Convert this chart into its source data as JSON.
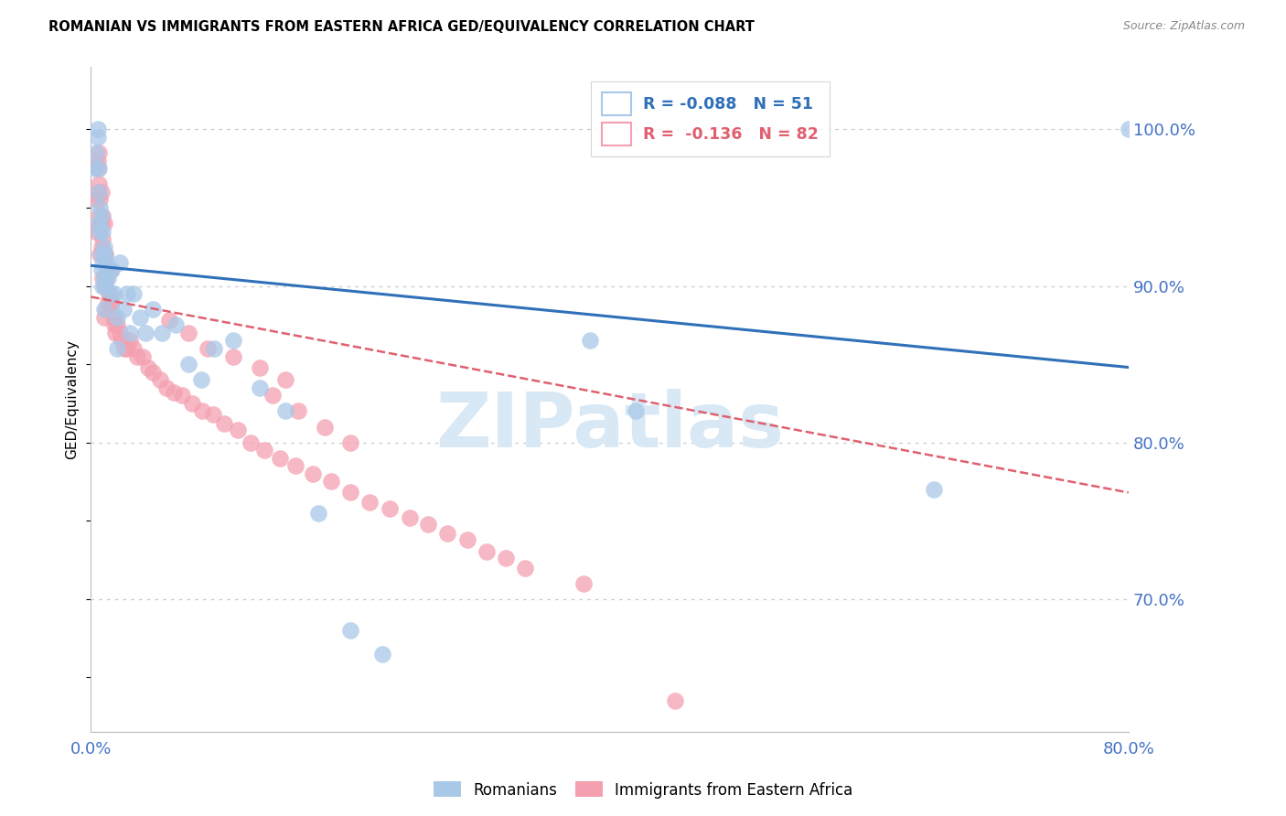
{
  "title": "ROMANIAN VS IMMIGRANTS FROM EASTERN AFRICA GED/EQUIVALENCY CORRELATION CHART",
  "source": "Source: ZipAtlas.com",
  "ylabel": "GED/Equivalency",
  "ytick_labels": [
    "100.0%",
    "90.0%",
    "80.0%",
    "70.0%"
  ],
  "ytick_values": [
    1.0,
    0.9,
    0.8,
    0.7
  ],
  "xlim": [
    0.0,
    0.8
  ],
  "ylim": [
    0.615,
    1.04
  ],
  "blue_label1": "R = -0.088",
  "blue_label2": "N = 51",
  "pink_label1": "R =  -0.136",
  "pink_label2": "N = 82",
  "blue_scatter_color": "#a8c8e8",
  "pink_scatter_color": "#f4a0b0",
  "blue_trend_color": "#3070b8",
  "pink_trend_color": "#e06070",
  "blue_trend_y0": 0.913,
  "blue_trend_y1": 0.848,
  "pink_trend_y0": 0.893,
  "pink_trend_y1": 0.768,
  "watermark": "ZIPatlas",
  "watermark_color": "#d8e8f5",
  "background_color": "#ffffff",
  "grid_color": "#cccccc",
  "tick_label_color": "#4472c4",
  "legend_box_color": "#cccccc",
  "blue_x": [
    0.003,
    0.004,
    0.005,
    0.005,
    0.006,
    0.006,
    0.006,
    0.007,
    0.007,
    0.008,
    0.008,
    0.008,
    0.009,
    0.009,
    0.009,
    0.01,
    0.01,
    0.01,
    0.011,
    0.011,
    0.012,
    0.013,
    0.014,
    0.015,
    0.016,
    0.018,
    0.02,
    0.022,
    0.025,
    0.028,
    0.03,
    0.033,
    0.038,
    0.042,
    0.048,
    0.055,
    0.065,
    0.075,
    0.085,
    0.095,
    0.11,
    0.13,
    0.15,
    0.175,
    0.2,
    0.225,
    0.385,
    0.42,
    0.65,
    0.8,
    0.02
  ],
  "blue_y": [
    0.975,
    0.985,
    1.0,
    0.995,
    0.94,
    0.96,
    0.975,
    0.95,
    0.935,
    0.945,
    0.92,
    0.91,
    0.935,
    0.915,
    0.9,
    0.925,
    0.905,
    0.885,
    0.92,
    0.9,
    0.915,
    0.905,
    0.91,
    0.895,
    0.91,
    0.895,
    0.88,
    0.915,
    0.885,
    0.895,
    0.87,
    0.895,
    0.88,
    0.87,
    0.885,
    0.87,
    0.875,
    0.85,
    0.84,
    0.86,
    0.865,
    0.835,
    0.82,
    0.755,
    0.68,
    0.665,
    0.865,
    0.82,
    0.77,
    1.0,
    0.86
  ],
  "pink_x": [
    0.003,
    0.004,
    0.005,
    0.005,
    0.005,
    0.006,
    0.006,
    0.006,
    0.007,
    0.007,
    0.007,
    0.008,
    0.008,
    0.008,
    0.009,
    0.009,
    0.009,
    0.01,
    0.01,
    0.01,
    0.01,
    0.011,
    0.011,
    0.012,
    0.012,
    0.013,
    0.013,
    0.014,
    0.015,
    0.015,
    0.016,
    0.017,
    0.018,
    0.019,
    0.02,
    0.022,
    0.024,
    0.026,
    0.028,
    0.03,
    0.033,
    0.036,
    0.04,
    0.044,
    0.048,
    0.053,
    0.058,
    0.064,
    0.07,
    0.078,
    0.086,
    0.094,
    0.103,
    0.113,
    0.123,
    0.134,
    0.146,
    0.158,
    0.171,
    0.185,
    0.2,
    0.215,
    0.23,
    0.246,
    0.26,
    0.275,
    0.29,
    0.305,
    0.32,
    0.335,
    0.14,
    0.16,
    0.18,
    0.2,
    0.15,
    0.13,
    0.11,
    0.09,
    0.075,
    0.06,
    0.45,
    0.38
  ],
  "pink_y": [
    0.935,
    0.955,
    0.975,
    0.96,
    0.98,
    0.945,
    0.965,
    0.985,
    0.955,
    0.94,
    0.92,
    0.96,
    0.94,
    0.925,
    0.945,
    0.93,
    0.905,
    0.94,
    0.92,
    0.9,
    0.88,
    0.92,
    0.9,
    0.905,
    0.885,
    0.91,
    0.89,
    0.895,
    0.91,
    0.888,
    0.89,
    0.88,
    0.875,
    0.87,
    0.875,
    0.87,
    0.865,
    0.86,
    0.86,
    0.865,
    0.86,
    0.855,
    0.855,
    0.848,
    0.845,
    0.84,
    0.835,
    0.832,
    0.83,
    0.825,
    0.82,
    0.818,
    0.812,
    0.808,
    0.8,
    0.795,
    0.79,
    0.785,
    0.78,
    0.775,
    0.768,
    0.762,
    0.758,
    0.752,
    0.748,
    0.742,
    0.738,
    0.73,
    0.726,
    0.72,
    0.83,
    0.82,
    0.81,
    0.8,
    0.84,
    0.848,
    0.855,
    0.86,
    0.87,
    0.878,
    0.635,
    0.71
  ]
}
